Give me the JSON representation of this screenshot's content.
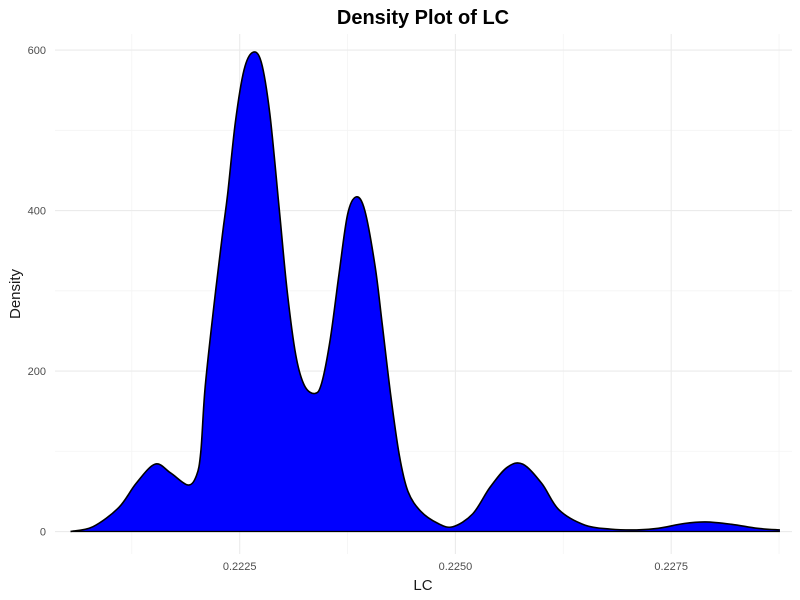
{
  "chart_data": {
    "type": "area",
    "title": "Density Plot of LC",
    "xlabel": "LC",
    "ylabel": "Density",
    "xlim": [
      0.22036,
      0.2289
    ],
    "ylim": [
      -28,
      620
    ],
    "x_ticks": [
      0.2225,
      0.225,
      0.2275
    ],
    "x_tick_labels": [
      "0.2225",
      "0.2250",
      "0.2275"
    ],
    "x_minor_ticks": [
      0.22125,
      0.22375,
      0.22625,
      0.22875
    ],
    "y_ticks": [
      0,
      200,
      400,
      600
    ],
    "y_tick_labels": [
      "0",
      "200",
      "400",
      "600"
    ],
    "y_minor_ticks": [
      100,
      300,
      500
    ],
    "fill_color": "#0000ff",
    "line_color": "#000000",
    "grid": true,
    "series": [
      {
        "x": [
          0.22054,
          0.2208,
          0.2211,
          0.2213,
          0.22152,
          0.2217,
          0.2219,
          0.222,
          0.22205,
          0.2221,
          0.2222,
          0.2223,
          0.22236,
          0.22245,
          0.22255,
          0.22265,
          0.22275,
          0.22285,
          0.22296,
          0.22305,
          0.22315,
          0.22325,
          0.22337,
          0.22345,
          0.22355,
          0.22365,
          0.22375,
          0.22385,
          0.22395,
          0.22407,
          0.22415,
          0.22425,
          0.22435,
          0.22445,
          0.2246,
          0.2248,
          0.22497,
          0.2252,
          0.2254,
          0.2256,
          0.22578,
          0.226,
          0.2262,
          0.2265,
          0.2268,
          0.2271,
          0.22735,
          0.22765,
          0.2279,
          0.2282,
          0.2285,
          0.22876
        ],
        "y": [
          0,
          6,
          30,
          60,
          84,
          73,
          58,
          70,
          100,
          180,
          280,
          370,
          420,
          510,
          575,
          597,
          585,
          520,
          400,
          300,
          220,
          182,
          172,
          185,
          240,
          320,
          395,
          417,
          400,
          330,
          260,
          170,
          95,
          50,
          25,
          10,
          6,
          22,
          55,
          80,
          84,
          60,
          27,
          8,
          3,
          2,
          4,
          10,
          12,
          9,
          4,
          2
        ]
      }
    ]
  }
}
